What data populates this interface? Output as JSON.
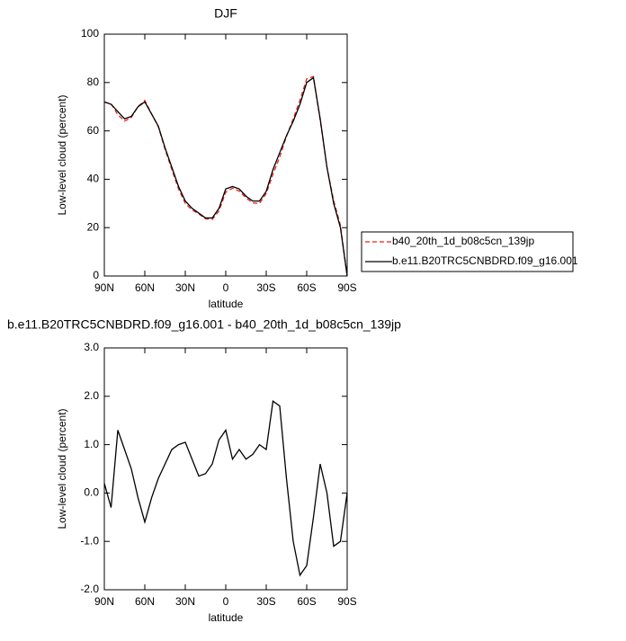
{
  "chart_data": [
    {
      "type": "line",
      "title": "DJF",
      "xlabel": "latitude",
      "ylabel": "Low-level cloud (percent)",
      "x": [
        90,
        85,
        80,
        75,
        70,
        65,
        60,
        55,
        50,
        45,
        40,
        35,
        30,
        25,
        20,
        15,
        10,
        5,
        0,
        -5,
        -10,
        -15,
        -20,
        -25,
        -30,
        -35,
        -40,
        -45,
        -50,
        -55,
        -60,
        -65,
        -70,
        -75,
        -80,
        -85,
        -90
      ],
      "xlim": [
        90,
        -90
      ],
      "xticks": [
        {
          "value": 90,
          "label": "90N"
        },
        {
          "value": 60,
          "label": "60N"
        },
        {
          "value": 30,
          "label": "30N"
        },
        0,
        {
          "value": -30,
          "label": "30S"
        },
        {
          "value": -60,
          "label": "60S"
        },
        {
          "value": -90,
          "label": "90S"
        }
      ],
      "ylim": [
        0,
        100
      ],
      "yticks": [
        0,
        20,
        40,
        60,
        80,
        100
      ],
      "legend": "right",
      "series": [
        {
          "name": "b40_20th_1d_b08c5cn_139jp",
          "color": "#e8221c",
          "dash": true,
          "values": [
            71.8,
            71.3,
            66.7,
            64.1,
            65.5,
            70.1,
            72.6,
            67.1,
            61.7,
            52.4,
            44.1,
            36,
            30,
            27.3,
            25.7,
            23.6,
            23.4,
            26.9,
            34.7,
            36.3,
            35.1,
            32.3,
            30.2,
            30,
            34.1,
            42.1,
            49.2,
            57.7,
            65,
            72.7,
            81.5,
            82.5,
            64.4,
            45,
            31.1,
            21,
            0
          ]
        },
        {
          "name": "b.e11.B20TRC5CNBDRD.f09_g16.001",
          "color": "#000000",
          "dash": false,
          "values": [
            72,
            71,
            68,
            65,
            66,
            70,
            72,
            67,
            62,
            53,
            45,
            37,
            31,
            28,
            26,
            24,
            24,
            28,
            36,
            37,
            36,
            33,
            31,
            31,
            35,
            44,
            51,
            58,
            64,
            71,
            80,
            82,
            65,
            45,
            30,
            20,
            0
          ]
        }
      ]
    },
    {
      "type": "line",
      "title": "b.e11.B20TRC5CNBDRD.f09_g16.001 - b40_20th_1d_b08c5cn_139jp",
      "xlabel": "latitude",
      "ylabel": "Low-level cloud (percent)",
      "x": [
        90,
        85,
        80,
        75,
        70,
        65,
        60,
        55,
        50,
        45,
        40,
        35,
        30,
        25,
        20,
        15,
        10,
        5,
        0,
        -5,
        -10,
        -15,
        -20,
        -25,
        -30,
        -35,
        -40,
        -45,
        -50,
        -55,
        -60,
        -65,
        -70,
        -75,
        -80,
        -85,
        -90
      ],
      "xlim": [
        90,
        -90
      ],
      "xticks": [
        {
          "value": 90,
          "label": "90N"
        },
        {
          "value": 60,
          "label": "60N"
        },
        {
          "value": 30,
          "label": "30N"
        },
        0,
        {
          "value": -30,
          "label": "30S"
        },
        {
          "value": -60,
          "label": "60S"
        },
        {
          "value": -90,
          "label": "90S"
        }
      ],
      "ylim": [
        -2,
        3
      ],
      "yticks": [
        {
          "value": -2,
          "label": "-2.0"
        },
        {
          "value": -1,
          "label": "-1.0"
        },
        {
          "value": 0,
          "label": "0.0"
        },
        {
          "value": 1,
          "label": "1.0"
        },
        {
          "value": 2,
          "label": "2.0"
        },
        {
          "value": 3,
          "label": "3.0"
        }
      ],
      "series": [
        {
          "color": "#000000",
          "values": [
            0.2,
            -0.3,
            1.3,
            0.9,
            0.5,
            -0.1,
            -0.6,
            -0.1,
            0.3,
            0.6,
            0.9,
            1.0,
            1.05,
            0.7,
            0.35,
            0.4,
            0.6,
            1.1,
            1.3,
            0.7,
            0.9,
            0.7,
            0.8,
            1.0,
            0.9,
            1.9,
            1.8,
            0.3,
            -1.0,
            -1.7,
            -1.5,
            -0.5,
            0.6,
            0.0,
            -1.1,
            -1.0,
            0.0
          ]
        }
      ]
    }
  ]
}
